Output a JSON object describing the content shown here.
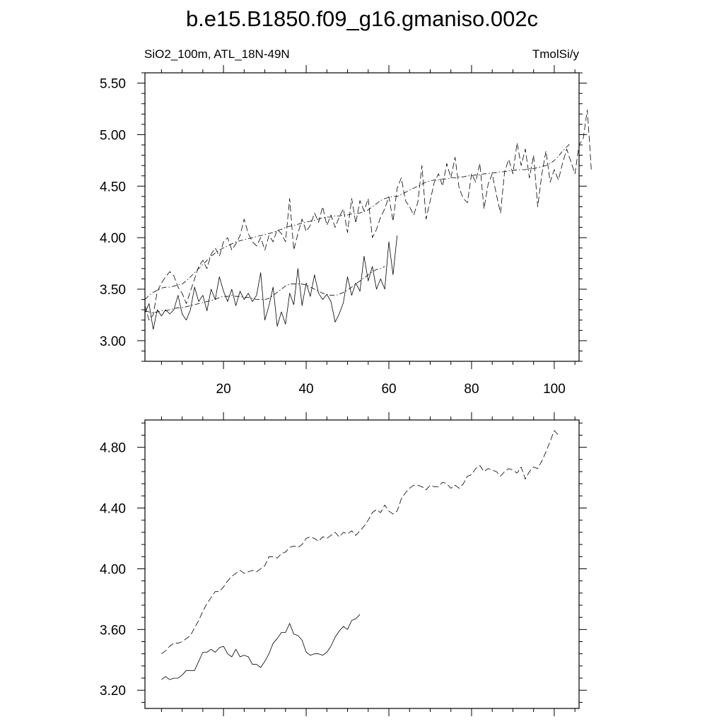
{
  "title": "b.e15.B1850.f09_g16.gmaniso.002c",
  "subtitle_left": "SiO2_100m, ATL_18N-49N",
  "subtitle_right": "TmolSi/y",
  "chart_data": [
    {
      "type": "line",
      "panel": "top",
      "xlim": [
        1,
        106
      ],
      "ylim": [
        2.8,
        5.6
      ],
      "x_ticks": [
        20,
        40,
        60,
        80,
        100
      ],
      "x_tick_labels": [
        "20",
        "40",
        "60",
        "80",
        "100"
      ],
      "y_ticks": [
        3.0,
        3.5,
        4.0,
        4.5,
        5.0,
        5.5
      ],
      "y_tick_labels": [
        "3.00",
        "3.50",
        "4.00",
        "4.50",
        "5.00",
        "5.50"
      ],
      "series": [
        {
          "style": "solid",
          "x_start": 1,
          "values": [
            3.27,
            3.36,
            3.11,
            3.3,
            3.24,
            3.3,
            3.26,
            3.3,
            3.44,
            3.26,
            3.2,
            3.3,
            3.52,
            3.38,
            3.44,
            3.29,
            3.5,
            3.4,
            3.62,
            3.48,
            3.38,
            3.5,
            3.34,
            3.48,
            3.4,
            3.46,
            3.38,
            3.44,
            3.66,
            3.2,
            3.34,
            3.52,
            3.14,
            3.28,
            3.16,
            3.46,
            3.35,
            3.7,
            3.34,
            3.56,
            3.43,
            3.64,
            3.46,
            3.4,
            3.45,
            3.38,
            3.18,
            3.26,
            3.37,
            3.62,
            3.44,
            3.56,
            3.48,
            3.82,
            3.58,
            3.72,
            3.5,
            3.6,
            3.5,
            3.96,
            3.64,
            4.02
          ]
        },
        {
          "style": "dot-dash",
          "x_start": 1,
          "values": [
            3.29,
            3.28,
            3.27,
            3.28,
            3.29,
            3.29,
            3.3,
            3.31,
            3.32,
            3.32,
            3.33,
            3.34,
            3.35,
            3.36,
            3.37,
            3.38,
            3.39,
            3.4,
            3.42,
            3.43,
            3.43,
            3.44,
            3.43,
            3.43,
            3.42,
            3.42,
            3.41,
            3.4,
            3.4,
            3.4,
            3.41,
            3.44,
            3.47,
            3.5,
            3.53,
            3.55,
            3.55,
            3.55,
            3.55,
            3.54,
            3.52,
            3.5,
            3.48,
            3.46,
            3.45,
            3.44,
            3.44,
            3.45,
            3.47,
            3.49,
            3.52,
            3.55,
            3.58,
            3.61,
            3.64,
            3.67,
            3.69,
            3.7,
            3.72
          ]
        },
        {
          "style": "dashed",
          "x_start": 1,
          "values": [
            3.34,
            3.2,
            3.25,
            3.48,
            3.56,
            3.62,
            3.67,
            3.63,
            3.52,
            3.46,
            3.36,
            3.48,
            3.6,
            3.72,
            3.78,
            3.7,
            3.84,
            3.9,
            3.82,
            3.96,
            4.0,
            3.88,
            3.94,
            4.02,
            4.18,
            4.04,
            3.96,
            3.92,
            4.0,
            3.88,
            4.02,
            3.96,
            4.08,
            4.04,
            3.96,
            4.38,
            3.88,
            4.04,
            4.18,
            4.06,
            4.12,
            4.24,
            4.15,
            4.3,
            4.12,
            4.22,
            4.1,
            4.2,
            4.28,
            4.05,
            4.38,
            4.14,
            4.36,
            4.26,
            4.38,
            4.0,
            4.08,
            4.2,
            4.28,
            4.4,
            4.16,
            4.48,
            4.58,
            4.36,
            4.3,
            4.22,
            4.34,
            4.7,
            4.18,
            4.36,
            4.54,
            4.62,
            4.5,
            4.72,
            4.58,
            4.78,
            4.48,
            4.38,
            4.34,
            4.62,
            4.54,
            4.72,
            4.28,
            4.52,
            4.62,
            4.42,
            4.24,
            4.64,
            4.76,
            4.62,
            4.92,
            4.7,
            4.86,
            4.58,
            4.8,
            4.3,
            4.62,
            4.84,
            4.54,
            4.66,
            4.56,
            4.72,
            4.86,
            4.74,
            4.62,
            4.9,
            4.96,
            5.24,
            4.64
          ]
        },
        {
          "style": "dot-dash",
          "x_start": 1,
          "values": [
            3.4,
            3.44,
            3.47,
            3.49,
            3.51,
            3.52,
            3.52,
            3.53,
            3.54,
            3.55,
            3.58,
            3.62,
            3.66,
            3.7,
            3.74,
            3.78,
            3.82,
            3.85,
            3.88,
            3.9,
            3.92,
            3.94,
            3.96,
            3.97,
            3.98,
            3.99,
            4.0,
            4.01,
            4.02,
            4.03,
            4.04,
            4.05,
            4.07,
            4.08,
            4.1,
            4.11,
            4.12,
            4.13,
            4.14,
            4.15,
            4.16,
            4.17,
            4.18,
            4.19,
            4.2,
            4.2,
            4.21,
            4.21,
            4.22,
            4.22,
            4.23,
            4.23,
            4.24,
            4.25,
            4.27,
            4.3,
            4.33,
            4.36,
            4.38,
            4.39,
            4.4,
            4.4,
            4.42,
            4.44,
            4.46,
            4.48,
            4.5,
            4.52,
            4.54,
            4.55,
            4.56,
            4.56,
            4.57,
            4.57,
            4.58,
            4.58,
            4.59,
            4.59,
            4.6,
            4.6,
            4.61,
            4.61,
            4.62,
            4.62,
            4.63,
            4.63,
            4.64,
            4.64,
            4.65,
            4.65,
            4.66,
            4.66,
            4.66,
            4.67,
            4.67,
            4.68,
            4.69,
            4.7,
            4.72,
            4.75,
            4.79,
            4.84,
            4.88,
            4.92
          ]
        }
      ]
    },
    {
      "type": "line",
      "panel": "bottom",
      "xlim": [
        1,
        106
      ],
      "ylim": [
        3.08,
        4.98
      ],
      "x_ticks": [
        20,
        40,
        60,
        80,
        100
      ],
      "y_ticks": [
        3.2,
        3.6,
        4.0,
        4.4,
        4.8
      ],
      "y_tick_labels": [
        "3.20",
        "3.60",
        "4.00",
        "4.40",
        "4.80"
      ],
      "series": [
        {
          "style": "solid",
          "x_start": 5,
          "values": [
            3.27,
            3.29,
            3.27,
            3.28,
            3.28,
            3.3,
            3.33,
            3.33,
            3.33,
            3.39,
            3.45,
            3.45,
            3.47,
            3.45,
            3.48,
            3.49,
            3.44,
            3.42,
            3.47,
            3.42,
            3.43,
            3.42,
            3.37,
            3.37,
            3.35,
            3.39,
            3.44,
            3.51,
            3.54,
            3.58,
            3.58,
            3.64,
            3.57,
            3.56,
            3.53,
            3.45,
            3.43,
            3.44,
            3.44,
            3.43,
            3.45,
            3.49,
            3.55,
            3.59,
            3.62,
            3.6,
            3.66,
            3.67,
            3.7
          ]
        },
        {
          "style": "dashed",
          "x_start": 5,
          "values": [
            3.44,
            3.46,
            3.49,
            3.51,
            3.51,
            3.52,
            3.54,
            3.56,
            3.61,
            3.66,
            3.72,
            3.77,
            3.81,
            3.85,
            3.85,
            3.88,
            3.92,
            3.95,
            3.97,
            3.99,
            3.97,
            3.98,
            3.99,
            3.98,
            4.0,
            4.02,
            4.08,
            4.08,
            4.07,
            4.1,
            4.11,
            4.14,
            4.15,
            4.14,
            4.16,
            4.2,
            4.21,
            4.2,
            4.18,
            4.21,
            4.2,
            4.22,
            4.24,
            4.21,
            4.24,
            4.23,
            4.25,
            4.22,
            4.25,
            4.28,
            4.32,
            4.37,
            4.39,
            4.37,
            4.42,
            4.38,
            4.36,
            4.38,
            4.46,
            4.5,
            4.53,
            4.55,
            4.55,
            4.54,
            4.52,
            4.55,
            4.54,
            4.54,
            4.57,
            4.56,
            4.53,
            4.55,
            4.53,
            4.56,
            4.61,
            4.62,
            4.66,
            4.68,
            4.64,
            4.66,
            4.65,
            4.64,
            4.61,
            4.64,
            4.66,
            4.65,
            4.63,
            4.67,
            4.59,
            4.64,
            4.67,
            4.66,
            4.71,
            4.77,
            4.84,
            4.91,
            4.88
          ]
        }
      ]
    }
  ]
}
